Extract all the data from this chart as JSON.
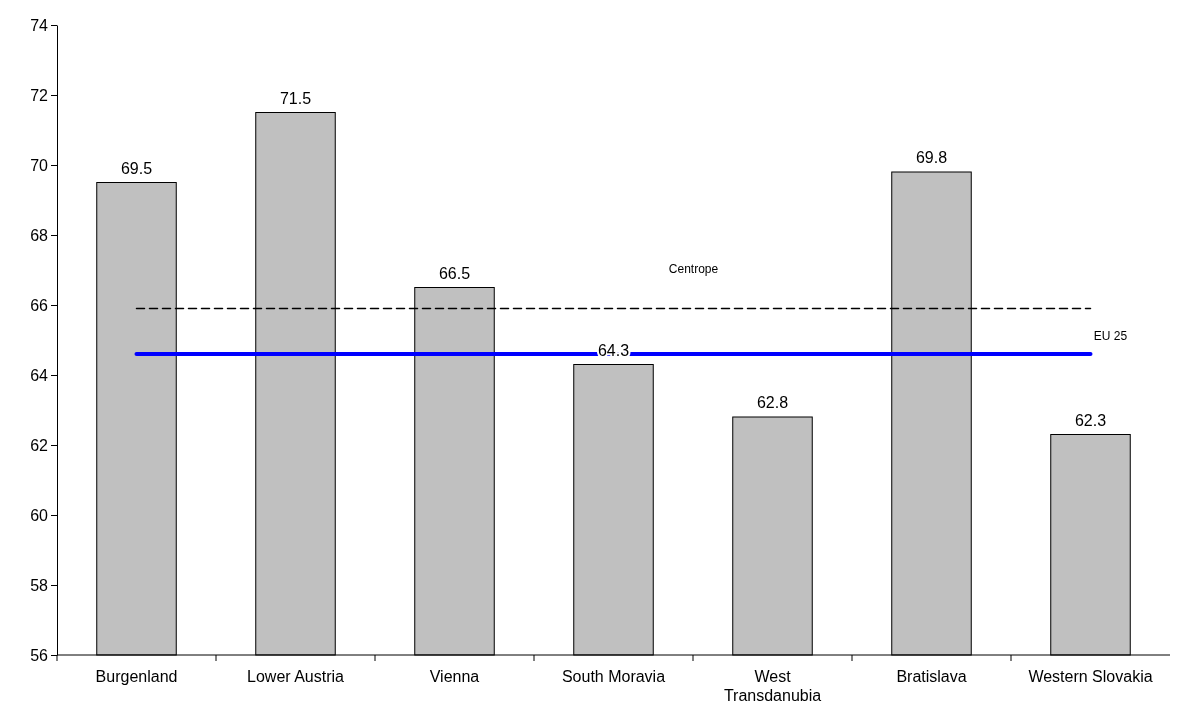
{
  "chart_data": {
    "type": "bar",
    "categories": [
      "Burgenland",
      "Lower Austria",
      "Vienna",
      "South Moravia",
      "West Transdanubia",
      "Bratislava",
      "Western Slovakia"
    ],
    "values": [
      69.5,
      71.5,
      66.5,
      64.3,
      62.8,
      69.8,
      62.3
    ],
    "color": "#c0c0c0",
    "data_labels": true,
    "ylim": [
      56,
      74
    ],
    "yticks": [
      56,
      58,
      60,
      62,
      64,
      66,
      68,
      70,
      72,
      74
    ],
    "grid": false,
    "ref_lines": [
      {
        "axis": "y",
        "value": 65.9,
        "label": "Centrope",
        "color": "#000000",
        "line_style": "dashed"
      },
      {
        "axis": "y",
        "value": 64.6,
        "label": "EU 25",
        "color": "#0000ff",
        "line_style": "solid"
      }
    ]
  }
}
